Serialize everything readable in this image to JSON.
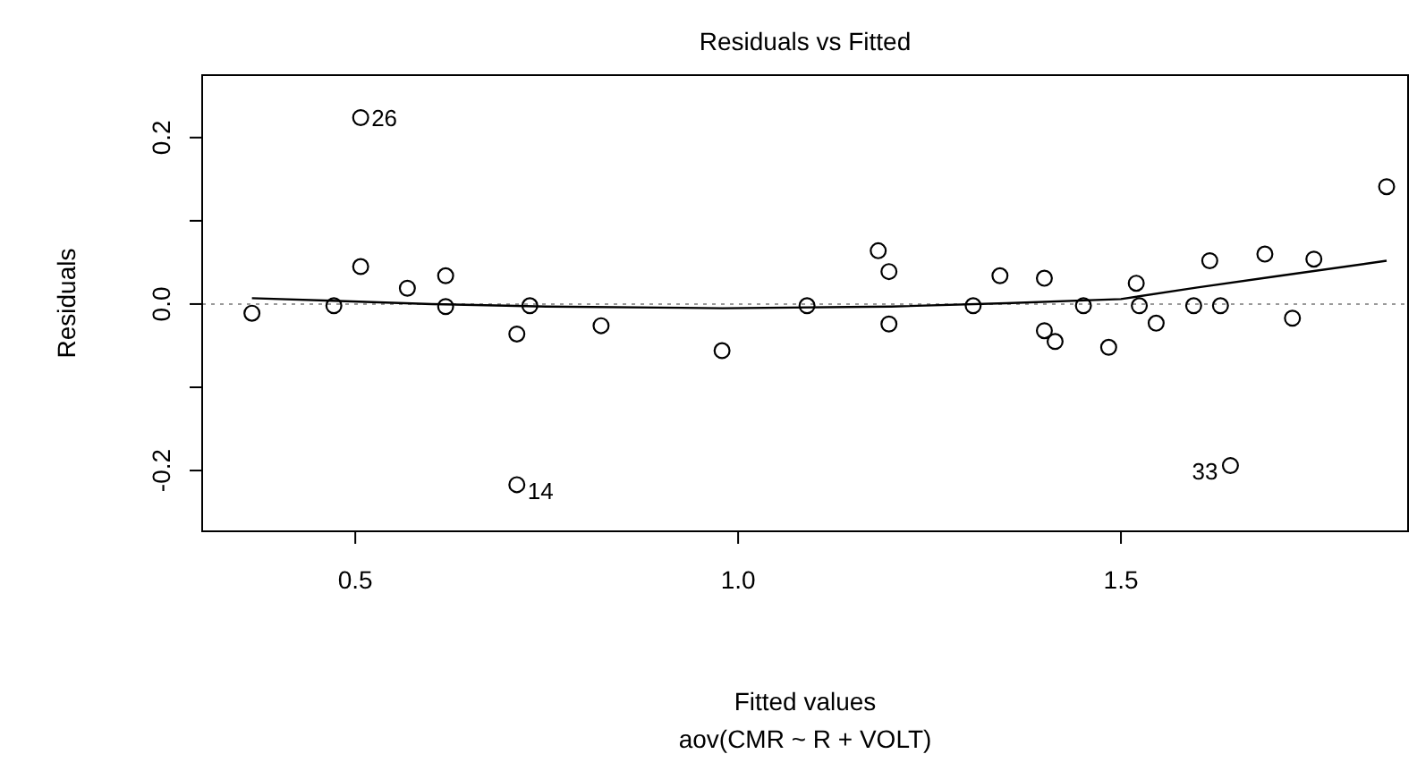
{
  "chart_data": {
    "type": "scatter",
    "title": "Residuals vs Fitted",
    "subtitle": "aov(CMR ~ R + VOLT)",
    "xlabel": "Fitted values",
    "ylabel": "Residuals",
    "xlim": [
      0.3,
      1.875
    ],
    "ylim": [
      -0.273,
      0.275
    ],
    "xticks": [
      0.5,
      {
        "value": 1,
        "label": "1.0"
      },
      1.5
    ],
    "yticks": [
      -0.2,
      {
        "value": -0.1,
        "label": null
      },
      {
        "value": 0,
        "label": "0.0"
      },
      {
        "value": 0.1,
        "label": null
      },
      0.2
    ],
    "marker": "circle",
    "grid": false,
    "series": [
      {
        "color": "#000000",
        "x": [
          0.365,
          0.472,
          0.507,
          0.507,
          0.568,
          0.618,
          0.618,
          0.711,
          0.711,
          0.728,
          0.821,
          0.979,
          1.09,
          1.183,
          1.197,
          1.197,
          1.307,
          1.342,
          1.4,
          1.4,
          1.414,
          1.451,
          1.484,
          1.52,
          1.524,
          1.546,
          1.595,
          1.616,
          1.63,
          1.643,
          1.688,
          1.724,
          1.752,
          1.847
        ],
        "values": [
          -0.011,
          -0.002,
          0.224,
          0.045,
          0.019,
          0.034,
          -0.003,
          -0.036,
          -0.217,
          -0.002,
          -0.026,
          -0.056,
          -0.002,
          0.064,
          0.039,
          -0.024,
          -0.002,
          0.034,
          0.031,
          -0.032,
          -0.045,
          -0.002,
          -0.052,
          0.025,
          -0.002,
          -0.023,
          -0.002,
          0.052,
          -0.002,
          -0.194,
          0.06,
          -0.017,
          0.054,
          0.141
        ]
      },
      {
        "type": "line",
        "color": "#000000",
        "marker": "none",
        "x": [
          0.365,
          0.47,
          0.6,
          0.75,
          0.98,
          1.2,
          1.35,
          1.5,
          1.6,
          1.7,
          1.847
        ],
        "values": [
          0.007,
          0.004,
          0.0,
          -0.003,
          -0.005,
          -0.003,
          0.001,
          0.006,
          0.02,
          0.033,
          0.052
        ]
      }
    ],
    "ref_lines": [
      {
        "axis": "y",
        "value": 0,
        "color": "#999999",
        "line_style": "dotted"
      }
    ],
    "annotations": [
      {
        "text": "26",
        "x": 0.507,
        "y": 0.224
      },
      {
        "text": "14",
        "x": 0.711,
        "y": -0.217
      },
      {
        "text": "33",
        "x": 1.643,
        "y": -0.194
      }
    ]
  }
}
